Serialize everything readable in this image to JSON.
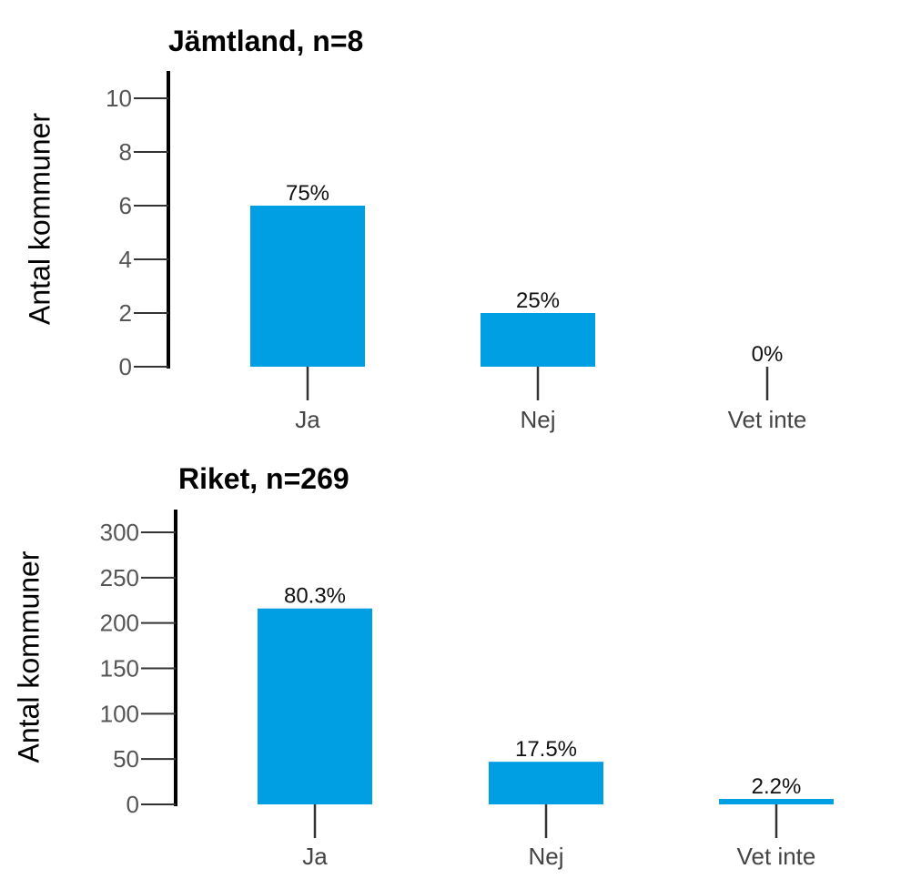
{
  "chart_data": [
    {
      "type": "bar",
      "title": "Jämtland, n=8",
      "ylabel": "Antal kommuner",
      "categories": [
        "Ja",
        "Nej",
        "Vet inte"
      ],
      "values": [
        6,
        2,
        0
      ],
      "data_labels": [
        "75%",
        "25%",
        "0%"
      ],
      "yticks": [
        "0",
        "2",
        "4",
        "6",
        "8",
        "10"
      ],
      "ylim": [
        0,
        10
      ],
      "bar_color": "#009fe3",
      "grid": false
    },
    {
      "type": "bar",
      "title": "Riket, n=269",
      "ylabel": "Antal kommuner",
      "categories": [
        "Ja",
        "Nej",
        "Vet inte"
      ],
      "values": [
        216,
        47,
        6
      ],
      "data_labels": [
        "80.3%",
        "17.5%",
        "2.2%"
      ],
      "yticks": [
        "0",
        "50",
        "100",
        "150",
        "200",
        "250",
        "300"
      ],
      "ylim": [
        0,
        300
      ],
      "bar_color": "#009fe3",
      "grid": false
    }
  ]
}
